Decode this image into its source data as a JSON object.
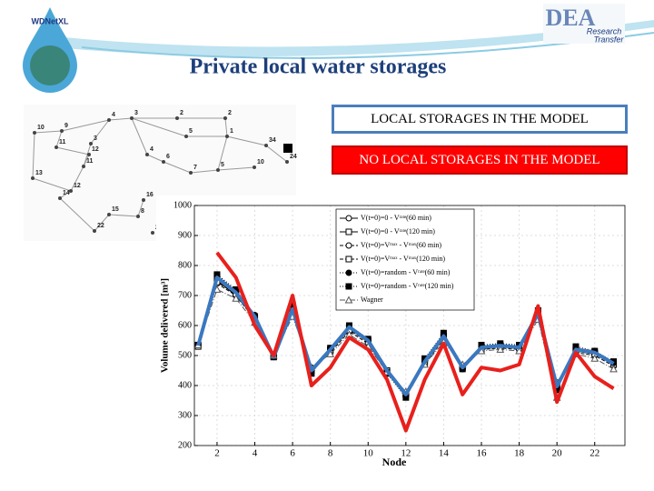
{
  "logos": {
    "left": "WDNetXL",
    "right_main": "DEA",
    "right_sub1": "Research",
    "right_sub2": "Transfer"
  },
  "slide_title": "Private local water storages",
  "network": {
    "node_labels": [
      "10",
      "9",
      "4",
      "3",
      "2",
      "2",
      "5",
      "1",
      "34",
      "24",
      "11",
      "3",
      "12",
      "11",
      "13",
      "12",
      "14",
      "4",
      "6",
      "7",
      "5",
      "10",
      "16",
      "8",
      "15",
      "22",
      "2"
    ]
  },
  "chart_data": {
    "type": "line",
    "x_label": "Node",
    "y_label": "Volume delivered [m³]",
    "x": [
      1,
      2,
      3,
      4,
      5,
      6,
      7,
      8,
      9,
      10,
      11,
      12,
      13,
      14,
      15,
      16,
      17,
      18,
      19,
      20,
      21,
      22,
      23
    ],
    "xlim": [
      0.8,
      23.6
    ],
    "xticks": [
      2,
      4,
      6,
      8,
      10,
      12,
      14,
      16,
      18,
      20,
      22
    ],
    "ylim": [
      200,
      1000
    ],
    "yticks": [
      200,
      300,
      400,
      500,
      600,
      700,
      800,
      900,
      1000
    ],
    "grid": true,
    "series": [
      {
        "name": "V(t=0)=0 - Vʳᵃᵗᵉ(60 min)",
        "color": "#000000",
        "marker": "circle-open",
        "dash": "none",
        "legend": "inset",
        "values": [
          535,
          750,
          700,
          625,
          495,
          650,
          445,
          515,
          590,
          545,
          445,
          365,
          480,
          560,
          455,
          525,
          530,
          525,
          635,
          395,
          515,
          505,
          470
        ]
      },
      {
        "name": "V(t=0)=0 - Vʳᵃᵗᵉ(120 min)",
        "color": "#000000",
        "marker": "square-open",
        "dash": "none",
        "legend": "inset",
        "values": [
          535,
          765,
          705,
          630,
          495,
          660,
          450,
          520,
          595,
          550,
          450,
          370,
          485,
          565,
          460,
          530,
          535,
          530,
          640,
          400,
          520,
          510,
          475
        ]
      },
      {
        "name": "V(t=0)=Vᵐᵃˣ - Vᵐᵃˣ(60 min)",
        "color": "#000000",
        "marker": "circle-open",
        "dash": "4 2",
        "legend": "inset",
        "values": [
          530,
          740,
          700,
          620,
          500,
          640,
          460,
          510,
          580,
          540,
          440,
          375,
          470,
          555,
          465,
          520,
          525,
          520,
          630,
          410,
          510,
          500,
          465
        ]
      },
      {
        "name": "V(t=0)=Vᵐᵃˣ - Vᵐᵃˣ(120 min)",
        "color": "#000000",
        "marker": "square-open",
        "dash": "4 2",
        "legend": "inset",
        "values": [
          530,
          745,
          705,
          625,
          500,
          645,
          455,
          515,
          585,
          545,
          445,
          370,
          475,
          560,
          465,
          520,
          530,
          525,
          635,
          405,
          515,
          505,
          470
        ]
      },
      {
        "name": "V(t=0)=random - Vʳᵃᵗᵉ(60 min)",
        "color": "#000000",
        "marker": "circle",
        "dash": "1 2",
        "legend": "inset",
        "values": [
          535,
          770,
          715,
          635,
          495,
          665,
          445,
          525,
          600,
          555,
          445,
          365,
          485,
          570,
          455,
          530,
          535,
          530,
          645,
          390,
          525,
          515,
          475
        ]
      },
      {
        "name": "V(t=0)=random - Vʳᵃᵗᵉ(120 min)",
        "color": "#000000",
        "marker": "square",
        "dash": "1 2",
        "legend": "inset",
        "values": [
          535,
          770,
          720,
          630,
          495,
          670,
          440,
          525,
          600,
          555,
          440,
          360,
          490,
          575,
          455,
          535,
          540,
          535,
          650,
          385,
          530,
          515,
          480
        ]
      },
      {
        "name": "Wagner",
        "color": "#555555",
        "marker": "triangle-open",
        "dash": "6 2 1 2",
        "legend": "inset",
        "values": [
          535,
          720,
          690,
          610,
          500,
          630,
          460,
          505,
          570,
          530,
          445,
          380,
          470,
          545,
          470,
          515,
          520,
          515,
          620,
          360,
          505,
          490,
          455
        ]
      },
      {
        "name": "LOCAL STORAGES IN THE MODEL",
        "color": "#3a78c0",
        "marker": "none",
        "dash": "none",
        "legend": "box-top",
        "values": [
          533,
          760,
          710,
          630,
          495,
          655,
          450,
          520,
          595,
          550,
          450,
          370,
          480,
          565,
          460,
          527,
          533,
          527,
          640,
          397,
          520,
          510,
          473
        ]
      },
      {
        "name": "NO LOCAL STORAGES IN THE MODEL",
        "color": "#e8201c",
        "marker": "none",
        "dash": "none",
        "legend": "box-bottom",
        "values": [
          null,
          843,
          760,
          600,
          500,
          700,
          400,
          460,
          560,
          520,
          420,
          250,
          420,
          540,
          370,
          460,
          450,
          470,
          665,
          345,
          510,
          430,
          390
        ]
      }
    ]
  }
}
